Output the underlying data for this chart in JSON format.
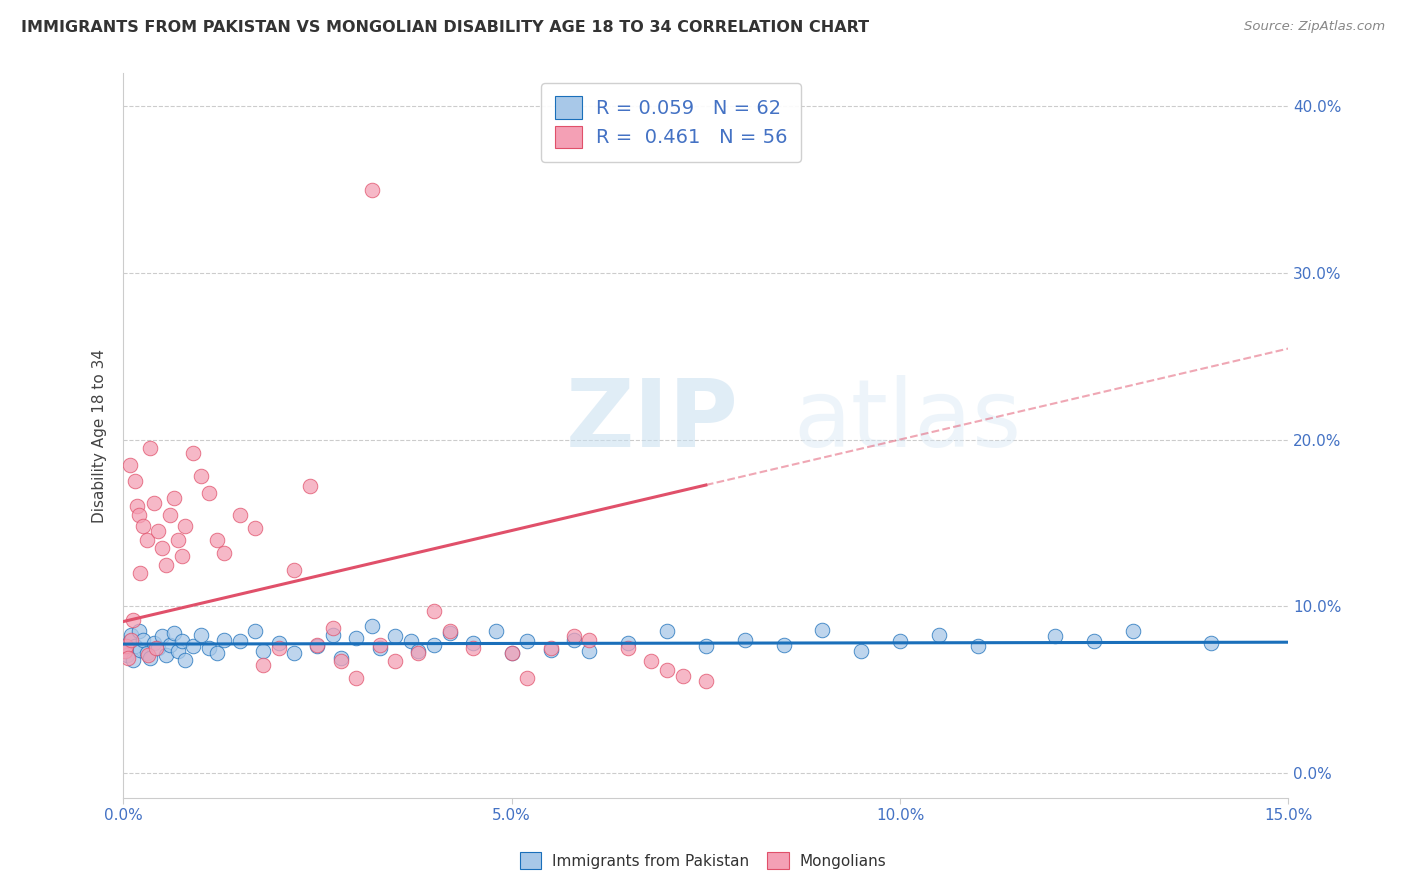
{
  "title": "IMMIGRANTS FROM PAKISTAN VS MONGOLIAN DISABILITY AGE 18 TO 34 CORRELATION CHART",
  "source": "Source: ZipAtlas.com",
  "ylabel_label": "Disability Age 18 to 34",
  "legend_label1": "Immigrants from Pakistan",
  "legend_label2": "Mongolians",
  "R1": "0.059",
  "N1": "62",
  "R2": "0.461",
  "N2": "56",
  "xlim": [
    0.0,
    0.15
  ],
  "ylim": [
    -0.015,
    0.42
  ],
  "color_blue": "#a8c8e8",
  "color_pink": "#f4a0b5",
  "color_blue_line": "#1a6fba",
  "color_pink_line": "#e0506a",
  "watermark_zip": "ZIP",
  "watermark_atlas": "atlas",
  "pakistan_x": [
    0.0003,
    0.0005,
    0.0008,
    0.001,
    0.0012,
    0.0015,
    0.002,
    0.0022,
    0.0025,
    0.003,
    0.0035,
    0.004,
    0.0045,
    0.005,
    0.0055,
    0.006,
    0.0065,
    0.007,
    0.0075,
    0.008,
    0.009,
    0.01,
    0.011,
    0.012,
    0.013,
    0.015,
    0.017,
    0.018,
    0.02,
    0.022,
    0.025,
    0.027,
    0.028,
    0.03,
    0.032,
    0.033,
    0.035,
    0.037,
    0.038,
    0.04,
    0.042,
    0.045,
    0.048,
    0.05,
    0.052,
    0.055,
    0.058,
    0.06,
    0.065,
    0.07,
    0.075,
    0.08,
    0.085,
    0.09,
    0.095,
    0.1,
    0.105,
    0.11,
    0.12,
    0.125,
    0.13,
    0.14
  ],
  "pakistan_y": [
    0.073,
    0.071,
    0.079,
    0.083,
    0.068,
    0.076,
    0.085,
    0.074,
    0.08,
    0.072,
    0.069,
    0.078,
    0.075,
    0.082,
    0.071,
    0.077,
    0.084,
    0.073,
    0.079,
    0.068,
    0.076,
    0.083,
    0.075,
    0.072,
    0.08,
    0.079,
    0.085,
    0.073,
    0.078,
    0.072,
    0.076,
    0.083,
    0.069,
    0.081,
    0.088,
    0.075,
    0.082,
    0.079,
    0.073,
    0.077,
    0.084,
    0.078,
    0.085,
    0.072,
    0.079,
    0.074,
    0.08,
    0.073,
    0.078,
    0.085,
    0.076,
    0.08,
    0.077,
    0.086,
    0.073,
    0.079,
    0.083,
    0.076,
    0.082,
    0.079,
    0.085,
    0.078
  ],
  "mongolian_x": [
    0.0002,
    0.0004,
    0.0006,
    0.0008,
    0.001,
    0.0012,
    0.0015,
    0.0018,
    0.002,
    0.0022,
    0.0025,
    0.003,
    0.0032,
    0.0035,
    0.004,
    0.0042,
    0.0045,
    0.005,
    0.0055,
    0.006,
    0.0065,
    0.007,
    0.0075,
    0.008,
    0.009,
    0.01,
    0.011,
    0.012,
    0.013,
    0.015,
    0.017,
    0.018,
    0.02,
    0.022,
    0.024,
    0.025,
    0.027,
    0.028,
    0.03,
    0.032,
    0.033,
    0.035,
    0.038,
    0.04,
    0.042,
    0.045,
    0.05,
    0.052,
    0.055,
    0.058,
    0.06,
    0.065,
    0.068,
    0.07,
    0.072,
    0.075
  ],
  "mongolian_y": [
    0.073,
    0.076,
    0.069,
    0.185,
    0.08,
    0.092,
    0.175,
    0.16,
    0.155,
    0.12,
    0.148,
    0.14,
    0.071,
    0.195,
    0.162,
    0.075,
    0.145,
    0.135,
    0.125,
    0.155,
    0.165,
    0.14,
    0.13,
    0.148,
    0.192,
    0.178,
    0.168,
    0.14,
    0.132,
    0.155,
    0.147,
    0.065,
    0.075,
    0.122,
    0.172,
    0.077,
    0.087,
    0.067,
    0.057,
    0.35,
    0.077,
    0.067,
    0.072,
    0.097,
    0.085,
    0.075,
    0.072,
    0.057,
    0.075,
    0.082,
    0.08,
    0.075,
    0.067,
    0.062,
    0.058,
    0.055
  ]
}
